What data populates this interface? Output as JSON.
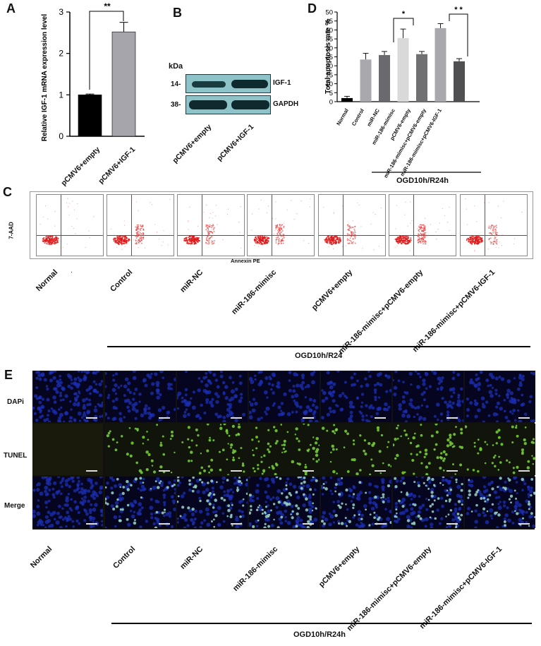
{
  "panels": {
    "a": "A",
    "b": "B",
    "c": "C",
    "d": "D",
    "e": "E"
  },
  "panelA": {
    "ylabel": "Relative IGF-1 mRNA expression level",
    "yticks": [
      "0",
      "1",
      "2",
      "3"
    ],
    "significance": "**",
    "xlabels": [
      "pCMV6+empty",
      "pCMV6+IGF-1"
    ]
  },
  "panelB": {
    "kda": "kDa",
    "markers": [
      "14-",
      "38-"
    ],
    "bands": [
      "IGF-1",
      "GAPDH"
    ],
    "xlabels": [
      "pCMV6+empty",
      "pCMV6+IGF-1"
    ]
  },
  "panelC": {
    "yaxis": "7-AAD",
    "xaxis": "Annexin PE",
    "labels": [
      "Normal",
      "Control",
      "miR-NC",
      "miR-186-mimisc",
      "pCMV6+empty",
      "miR-186-mimisc+pCMV6-empty",
      "miR-186-mimisc+pCMV6-IGF-1"
    ],
    "dot": ".",
    "group": "OGD10h/R24"
  },
  "panelD": {
    "ylabel": "Total apoptosis rate %",
    "yticks": [
      "0",
      "5",
      "10",
      "15",
      "20",
      "25",
      "30",
      "35",
      "40",
      "45",
      "50"
    ],
    "sig1": "*",
    "sig2": "* *",
    "xlabels": [
      "Normal",
      "Control",
      "miR-NC",
      "miR-186-mimisc",
      "pCMV6-empty",
      "miR-186-mimisc+pCMV6-empty",
      "miR-186-mimisc+pCMV6-IGF-1"
    ],
    "group": "OGD10h/R24h"
  },
  "panelE": {
    "rows": [
      "DAPi",
      "TUNEL",
      "Merge"
    ],
    "labels": [
      "Normal",
      "Control",
      "miR-NC",
      "miR-186-mimisc",
      "pCMV6+empty",
      "miR-186-mimisc+pCMV6-empty",
      "miR-186-mimisc+pCMV6-IGF-1"
    ],
    "group": "OGD10h/R24h"
  },
  "chart_data": [
    {
      "type": "bar",
      "categories": [
        "pCMV6+empty",
        "pCMV6+IGF-1"
      ],
      "values": [
        1.0,
        2.52
      ],
      "errors": [
        0.02,
        0.23
      ],
      "ylabel": "Relative IGF-1 mRNA expression level",
      "ylim": [
        0,
        3
      ],
      "colors": [
        "#000000",
        "#a5a5ab"
      ]
    },
    {
      "type": "bar",
      "categories": [
        "Normal",
        "Control",
        "miR-NC",
        "miR-186-mimisc",
        "pCMV6-empty",
        "miR-186-mimisc+pCMV6-empty",
        "miR-186-mimisc+pCMV6-IGF-1"
      ],
      "values": [
        2,
        23.5,
        26,
        35.5,
        26.5,
        41,
        22.5
      ],
      "errors": [
        1,
        3.5,
        2,
        5,
        1.5,
        2.5,
        1.5
      ],
      "ylabel": "Total apoptosis rate %",
      "ylim": [
        0,
        50
      ],
      "colors": [
        "#000000",
        "#a8a8ad",
        "#6a6a6e",
        "#d9d9d9",
        "#707073",
        "#a8a8ad",
        "#505053"
      ]
    }
  ]
}
